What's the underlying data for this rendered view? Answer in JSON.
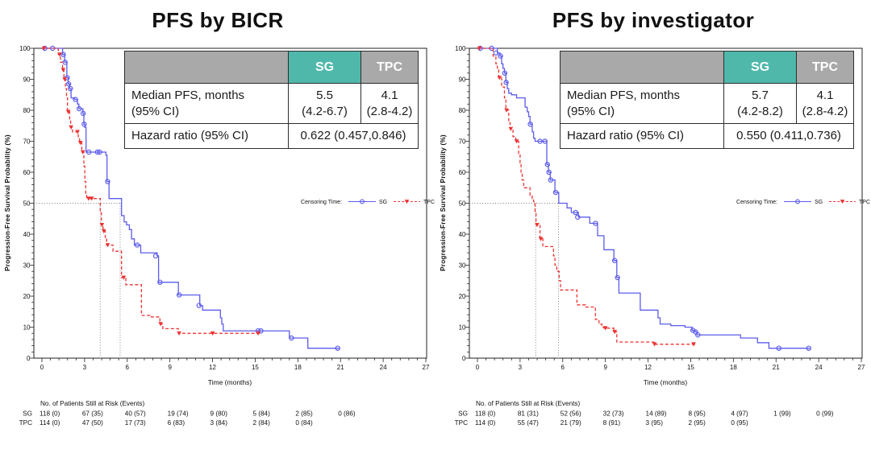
{
  "colors": {
    "sg": "#5c5cec",
    "tpc": "#ee3333",
    "teal": "#4fb8ab",
    "gray_header": "#a9a9a9",
    "axis": "#222222",
    "ref": "#777777",
    "text": "#111111"
  },
  "legend": {
    "label": "Censoring Time:",
    "sg": "SG",
    "tpc": "TPC"
  },
  "axes": {
    "y_label": "Progression-Free Survival Probability (%)",
    "x_label": "Time (months)"
  },
  "chart_data": [
    {
      "type": "line",
      "title": "PFS by BICR",
      "xlabel": "Time (months)",
      "ylabel": "Progression-Free Survival Probability (%)",
      "xlim": [
        0,
        27
      ],
      "ylim": [
        0,
        100
      ],
      "x_ticks": [
        0,
        3,
        6,
        9,
        12,
        15,
        18,
        21,
        24,
        27
      ],
      "y_ticks": [
        0,
        10,
        20,
        30,
        40,
        50,
        60,
        70,
        80,
        90,
        100
      ],
      "medians": {
        "sg": 5.5,
        "tpc": 4.1
      },
      "reference_line_y": 50,
      "stats": {
        "col_sg": "SG",
        "col_tpc": "TPC",
        "median_label_1": "Median PFS, months",
        "median_label_2": "(95% CI)",
        "sg_value": "5.5",
        "sg_ci": "(4.2-6.7)",
        "tpc_value": "4.1",
        "tpc_ci": "(2.8-4.2)",
        "hr_label": "Hazard ratio (95% CI)",
        "hr_value": "0.622 (0.457,0.846)"
      },
      "series": [
        {
          "name": "SG",
          "color_key": "sg",
          "dashed": false,
          "end": 20.9,
          "steps": [
            [
              0,
              100
            ],
            [
              1.45,
              98
            ],
            [
              1.6,
              95.5
            ],
            [
              1.75,
              90.5
            ],
            [
              1.85,
              88.5
            ],
            [
              1.95,
              87
            ],
            [
              2.05,
              84
            ],
            [
              2.3,
              83.5
            ],
            [
              2.5,
              82
            ],
            [
              2.6,
              80.5
            ],
            [
              2.88,
              79
            ],
            [
              2.95,
              75.5
            ],
            [
              3.02,
              74.5
            ],
            [
              3.1,
              66.5
            ],
            [
              4.5,
              65.5
            ],
            [
              4.58,
              57
            ],
            [
              4.72,
              51.5
            ],
            [
              5.6,
              46
            ],
            [
              5.78,
              44
            ],
            [
              5.95,
              43
            ],
            [
              6.15,
              41.5
            ],
            [
              6.3,
              38.5
            ],
            [
              6.5,
              36.5
            ],
            [
              6.95,
              34
            ],
            [
              8.1,
              33
            ],
            [
              8.2,
              24.5
            ],
            [
              9.6,
              20.4
            ],
            [
              11.1,
              17
            ],
            [
              11.3,
              15.5
            ],
            [
              12.55,
              13
            ],
            [
              12.65,
              11
            ],
            [
              12.75,
              8.8
            ],
            [
              17.4,
              6.5
            ],
            [
              18.7,
              3.2
            ]
          ],
          "censors": [
            [
              0.2,
              100
            ],
            [
              0.75,
              100
            ],
            [
              1.5,
              98
            ],
            [
              1.63,
              95.5
            ],
            [
              1.78,
              90.5
            ],
            [
              1.88,
              88.5
            ],
            [
              2.0,
              87
            ],
            [
              2.35,
              83.5
            ],
            [
              2.62,
              80.5
            ],
            [
              2.9,
              79
            ],
            [
              2.97,
              75.5
            ],
            [
              3.3,
              66.5
            ],
            [
              3.9,
              66.5
            ],
            [
              4.05,
              66.5
            ],
            [
              4.62,
              57
            ],
            [
              6.7,
              36.5
            ],
            [
              8.0,
              33
            ],
            [
              8.3,
              24.5
            ],
            [
              9.65,
              20.4
            ],
            [
              11.05,
              17
            ],
            [
              15.2,
              8.8
            ],
            [
              15.4,
              8.8
            ],
            [
              17.55,
              6.5
            ],
            [
              20.8,
              3.2
            ]
          ]
        },
        {
          "name": "TPC",
          "color_key": "tpc",
          "dashed": true,
          "end": 15.35,
          "steps": [
            [
              0,
              100
            ],
            [
              1.15,
              98
            ],
            [
              1.3,
              95.5
            ],
            [
              1.45,
              93
            ],
            [
              1.55,
              90
            ],
            [
              1.65,
              87
            ],
            [
              1.73,
              84.5
            ],
            [
              1.8,
              79.5
            ],
            [
              1.95,
              77
            ],
            [
              2.02,
              74.5
            ],
            [
              2.15,
              73
            ],
            [
              2.55,
              71
            ],
            [
              2.65,
              69.5
            ],
            [
              2.8,
              66.5
            ],
            [
              2.95,
              62
            ],
            [
              3.02,
              57
            ],
            [
              3.08,
              53
            ],
            [
              3.15,
              51.5
            ],
            [
              4.1,
              47
            ],
            [
              4.18,
              43
            ],
            [
              4.3,
              41
            ],
            [
              4.45,
              38.5
            ],
            [
              4.55,
              36.5
            ],
            [
              5.0,
              34.5
            ],
            [
              5.6,
              26
            ],
            [
              5.9,
              23.7
            ],
            [
              7.0,
              13.8
            ],
            [
              7.6,
              13.3
            ],
            [
              8.3,
              11
            ],
            [
              8.5,
              9.5
            ],
            [
              9.6,
              8
            ]
          ],
          "censors": [
            [
              0.15,
              100
            ],
            [
              1.25,
              98
            ],
            [
              1.5,
              93
            ],
            [
              1.6,
              90
            ],
            [
              1.85,
              79.5
            ],
            [
              2.05,
              74.5
            ],
            [
              2.5,
              73
            ],
            [
              2.7,
              69.5
            ],
            [
              2.88,
              66.5
            ],
            [
              3.28,
              51.5
            ],
            [
              3.5,
              51.5
            ],
            [
              4.22,
              43
            ],
            [
              4.35,
              41
            ],
            [
              4.62,
              36.5
            ],
            [
              5.75,
              26
            ],
            [
              8.35,
              11
            ],
            [
              9.65,
              8
            ],
            [
              12.0,
              8
            ],
            [
              15.2,
              8
            ]
          ]
        }
      ],
      "risk_table": {
        "header": "No. of Patients Still at Risk (Events)",
        "rows": [
          {
            "name": "SG",
            "values": [
              "118 (0)",
              "67 (35)",
              "40 (57)",
              "19 (74)",
              "9 (80)",
              "5 (84)",
              "2 (85)",
              "0 (86)"
            ]
          },
          {
            "name": "TPC",
            "values": [
              "114 (0)",
              "47 (50)",
              "17 (73)",
              "6 (83)",
              "3 (84)",
              "2 (84)",
              "0 (84)"
            ]
          }
        ]
      }
    },
    {
      "type": "line",
      "title": "PFS by investigator",
      "xlabel": "Time (months)",
      "ylabel": "Progression-Free Survival Probability (%)",
      "xlim": [
        0,
        27
      ],
      "ylim": [
        0,
        100
      ],
      "x_ticks": [
        0,
        3,
        6,
        9,
        12,
        15,
        18,
        21,
        24,
        27
      ],
      "y_ticks": [
        0,
        10,
        20,
        30,
        40,
        50,
        60,
        70,
        80,
        90,
        100
      ],
      "medians": {
        "sg": 5.7,
        "tpc": 4.1
      },
      "reference_line_y": 50,
      "stats": {
        "col_sg": "SG",
        "col_tpc": "TPC",
        "median_label_1": "Median PFS, months",
        "median_label_2": "(95% CI)",
        "sg_value": "5.7",
        "sg_ci": "(4.2-8.2)",
        "tpc_value": "4.1",
        "tpc_ci": "(2.8-4.2)",
        "hr_label": "Hazard ratio (95% CI)",
        "hr_value": "0.550 (0.411,0.736)"
      },
      "series": [
        {
          "name": "SG",
          "color_key": "sg",
          "dashed": false,
          "end": 23.4,
          "steps": [
            [
              0,
              100
            ],
            [
              1.4,
              98.5
            ],
            [
              1.58,
              97.5
            ],
            [
              1.7,
              95
            ],
            [
              1.8,
              93.5
            ],
            [
              1.9,
              92
            ],
            [
              2.0,
              89
            ],
            [
              2.1,
              87
            ],
            [
              2.2,
              85.5
            ],
            [
              2.4,
              85
            ],
            [
              2.75,
              84
            ],
            [
              3.35,
              81
            ],
            [
              3.5,
              79.5
            ],
            [
              3.6,
              78
            ],
            [
              3.7,
              75.5
            ],
            [
              3.85,
              73
            ],
            [
              3.95,
              71
            ],
            [
              4.05,
              70
            ],
            [
              4.88,
              62.5
            ],
            [
              5.0,
              60
            ],
            [
              5.12,
              57.5
            ],
            [
              5.45,
              53.5
            ],
            [
              5.72,
              50
            ],
            [
              6.3,
              48.5
            ],
            [
              6.6,
              47
            ],
            [
              7.1,
              45.5
            ],
            [
              7.9,
              43.5
            ],
            [
              8.45,
              39.5
            ],
            [
              8.9,
              35
            ],
            [
              9.6,
              31.5
            ],
            [
              9.8,
              26
            ],
            [
              9.95,
              21
            ],
            [
              11.45,
              15.5
            ],
            [
              12.7,
              13
            ],
            [
              12.85,
              11
            ],
            [
              13.6,
              10.5
            ],
            [
              14.6,
              10
            ],
            [
              15.1,
              9
            ],
            [
              15.3,
              8.5
            ],
            [
              15.45,
              7.5
            ],
            [
              18.5,
              6.5
            ],
            [
              19.7,
              5
            ],
            [
              20.5,
              3.2
            ]
          ],
          "censors": [
            [
              0.2,
              100
            ],
            [
              1.0,
              100
            ],
            [
              1.3,
              98.5
            ],
            [
              1.62,
              97.5
            ],
            [
              1.92,
              92
            ],
            [
              2.02,
              89
            ],
            [
              3.72,
              75.5
            ],
            [
              4.4,
              70
            ],
            [
              4.75,
              70
            ],
            [
              4.92,
              62.5
            ],
            [
              5.03,
              60
            ],
            [
              5.15,
              57.5
            ],
            [
              5.5,
              53.5
            ],
            [
              6.9,
              47
            ],
            [
              7.05,
              45.5
            ],
            [
              8.3,
              43.5
            ],
            [
              9.65,
              31.5
            ],
            [
              9.85,
              26
            ],
            [
              15.15,
              9
            ],
            [
              15.33,
              8.5
            ],
            [
              15.5,
              7.5
            ],
            [
              21.2,
              3.2
            ],
            [
              23.3,
              3.2
            ]
          ]
        },
        {
          "name": "TPC",
          "color_key": "tpc",
          "dashed": true,
          "end": 15.35,
          "steps": [
            [
              0,
              100
            ],
            [
              1.1,
              97.5
            ],
            [
              1.3,
              95
            ],
            [
              1.4,
              93
            ],
            [
              1.5,
              90.5
            ],
            [
              1.7,
              87.5
            ],
            [
              1.9,
              84
            ],
            [
              2.0,
              80
            ],
            [
              2.2,
              76
            ],
            [
              2.3,
              74
            ],
            [
              2.5,
              71.5
            ],
            [
              2.7,
              70
            ],
            [
              2.9,
              66
            ],
            [
              3.0,
              63
            ],
            [
              3.07,
              60
            ],
            [
              3.15,
              57.5
            ],
            [
              3.25,
              55
            ],
            [
              3.7,
              52.5
            ],
            [
              3.85,
              51.5
            ],
            [
              3.95,
              50.5
            ],
            [
              4.05,
              47
            ],
            [
              4.12,
              43
            ],
            [
              4.4,
              38.5
            ],
            [
              4.6,
              36
            ],
            [
              5.35,
              33
            ],
            [
              5.45,
              30
            ],
            [
              5.58,
              28
            ],
            [
              5.75,
              25
            ],
            [
              5.85,
              22
            ],
            [
              7.0,
              17.2
            ],
            [
              7.6,
              16.5
            ],
            [
              8.3,
              12.5
            ],
            [
              8.55,
              11
            ],
            [
              8.75,
              10
            ],
            [
              8.9,
              9.7
            ],
            [
              9.6,
              8.5
            ],
            [
              9.8,
              5.2
            ],
            [
              12.4,
              4.5
            ]
          ],
          "censors": [
            [
              0.15,
              100
            ],
            [
              1.55,
              90.5
            ],
            [
              2.05,
              80
            ],
            [
              2.35,
              74
            ],
            [
              2.75,
              70
            ],
            [
              4.2,
              43
            ],
            [
              4.45,
              38.5
            ],
            [
              9.0,
              9.7
            ],
            [
              9.65,
              8.5
            ],
            [
              12.45,
              4.5
            ],
            [
              15.2,
              4.5
            ]
          ]
        }
      ],
      "risk_table": {
        "header": "No. of Patients Still at Risk (Events)",
        "rows": [
          {
            "name": "SG",
            "values": [
              "118 (0)",
              "81 (31)",
              "52 (56)",
              "32 (73)",
              "14 (89)",
              "8 (95)",
              "4 (97)",
              "1 (99)",
              "0 (99)"
            ]
          },
          {
            "name": "TPC",
            "values": [
              "114 (0)",
              "55 (47)",
              "21 (79)",
              "8 (91)",
              "3 (95)",
              "2 (95)",
              "0 (95)"
            ]
          }
        ]
      }
    }
  ]
}
